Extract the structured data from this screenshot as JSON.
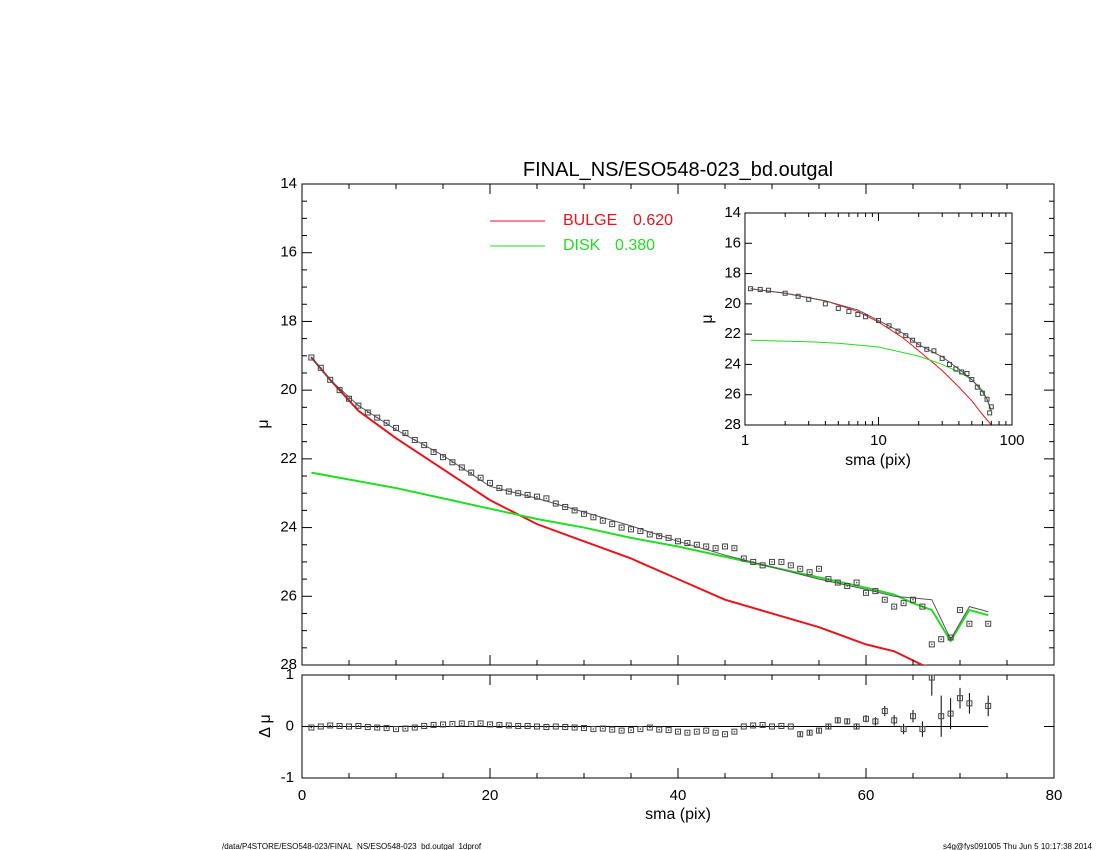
{
  "title": "FINAL_NS/ESO548-023_bd.outgal",
  "footer_left": "/data/P4STORE/ESO548-023/FINAL_NS/ESO548-023_bd.outgal_1dprof",
  "footer_right": "s4g@fys091005  Thu Jun  5 10:17:38 2014",
  "colors": {
    "bulge": "#e8141c",
    "disk": "#22dd22",
    "total": "#555555",
    "points": "#444444"
  },
  "chart_data": [
    {
      "type": "line",
      "panel": "main",
      "title": "FINAL_NS/ESO548-023_bd.outgal",
      "xlabel": "sma (pix)",
      "ylabel": "μ",
      "xlim": [
        0,
        80
      ],
      "ylim": [
        28,
        14
      ],
      "x_ticks": [
        0,
        20,
        40,
        60,
        80
      ],
      "y_ticks": [
        14,
        16,
        18,
        20,
        22,
        24,
        26,
        28
      ],
      "legend": [
        {
          "name": "BULGE",
          "value": "0.620",
          "color": "#e8141c"
        },
        {
          "name": "DISK",
          "value": "0.380",
          "color": "#22dd22"
        }
      ],
      "legend_position": "top-center",
      "series": [
        {
          "name": "BULGE",
          "x": [
            1,
            3,
            6,
            10,
            15,
            20,
            25,
            30,
            35,
            40,
            45,
            50,
            55,
            60,
            63,
            66,
            70
          ],
          "y": [
            19.05,
            19.7,
            20.6,
            21.4,
            22.3,
            23.2,
            23.9,
            24.4,
            24.9,
            25.5,
            26.1,
            26.5,
            26.9,
            27.4,
            27.6,
            28.0,
            28.2
          ]
        },
        {
          "name": "DISK",
          "x": [
            1,
            5,
            10,
            15,
            20,
            25,
            30,
            35,
            40,
            45,
            50,
            55,
            60,
            63,
            65,
            67,
            69,
            71,
            73
          ],
          "y": [
            22.4,
            22.6,
            22.85,
            23.15,
            23.45,
            23.75,
            24.0,
            24.3,
            24.55,
            24.85,
            25.15,
            25.45,
            25.75,
            25.95,
            26.2,
            26.4,
            27.3,
            26.4,
            26.55
          ]
        },
        {
          "name": "total",
          "x": [
            1,
            3,
            6,
            10,
            15,
            20,
            25,
            30,
            35,
            40,
            45,
            50,
            55,
            60,
            63,
            65,
            67,
            69,
            71,
            73
          ],
          "y": [
            19.05,
            19.7,
            20.45,
            21.15,
            21.9,
            22.8,
            23.15,
            23.55,
            23.95,
            24.4,
            24.8,
            25.15,
            25.5,
            25.8,
            26.0,
            26.05,
            26.1,
            27.25,
            26.3,
            26.45
          ]
        },
        {
          "name": "points",
          "style": "markers",
          "x": [
            1,
            2,
            3,
            4,
            5,
            6,
            7,
            8,
            9,
            10,
            11,
            12,
            13,
            14,
            15,
            16,
            17,
            18,
            19,
            20,
            21,
            22,
            23,
            24,
            25,
            26,
            27,
            28,
            29,
            30,
            31,
            32,
            33,
            34,
            35,
            36,
            37,
            38,
            39,
            40,
            41,
            42,
            43,
            44,
            45,
            46,
            47,
            48,
            49,
            50,
            51,
            52,
            53,
            54,
            55,
            56,
            57,
            58,
            59,
            60,
            61,
            62,
            63,
            64,
            65,
            66,
            67,
            68,
            69,
            70,
            71,
            73
          ],
          "y": [
            19.05,
            19.35,
            19.7,
            20.0,
            20.25,
            20.45,
            20.65,
            20.8,
            20.95,
            21.1,
            21.25,
            21.45,
            21.6,
            21.8,
            21.95,
            22.1,
            22.25,
            22.4,
            22.55,
            22.7,
            22.85,
            22.95,
            23.0,
            23.05,
            23.1,
            23.15,
            23.3,
            23.4,
            23.5,
            23.6,
            23.7,
            23.8,
            23.9,
            24.0,
            24.05,
            24.1,
            24.2,
            24.25,
            24.3,
            24.4,
            24.45,
            24.5,
            24.55,
            24.6,
            24.55,
            24.6,
            24.9,
            25.0,
            25.1,
            25.0,
            25.0,
            25.1,
            25.2,
            25.3,
            25.2,
            25.5,
            25.6,
            25.7,
            25.6,
            25.9,
            25.85,
            26.1,
            26.3,
            26.2,
            26.1,
            26.3,
            27.4,
            27.25,
            27.2,
            26.4,
            26.8,
            26.8
          ]
        }
      ]
    },
    {
      "type": "scatter",
      "panel": "residual",
      "xlabel": "sma (pix)",
      "ylabel": "Δ μ",
      "xlim": [
        0,
        80
      ],
      "ylim": [
        -1.0,
        1.0
      ],
      "x_ticks": [
        0,
        20,
        40,
        60,
        80
      ],
      "y_ticks": [
        1,
        0,
        -1
      ],
      "x": [
        1,
        2,
        3,
        4,
        5,
        6,
        7,
        8,
        9,
        10,
        11,
        12,
        13,
        14,
        15,
        16,
        17,
        18,
        19,
        20,
        21,
        22,
        23,
        24,
        25,
        26,
        27,
        28,
        29,
        30,
        31,
        32,
        33,
        34,
        35,
        36,
        37,
        38,
        39,
        40,
        41,
        42,
        43,
        44,
        45,
        46,
        47,
        48,
        49,
        50,
        51,
        52,
        53,
        54,
        55,
        56,
        57,
        58,
        59,
        60,
        61,
        62,
        63,
        64,
        65,
        66,
        67,
        68,
        69,
        70,
        71,
        73
      ],
      "y": [
        -0.02,
        0.0,
        0.02,
        0.01,
        0.0,
        0.01,
        -0.01,
        -0.02,
        -0.03,
        -0.05,
        -0.04,
        -0.02,
        0.01,
        0.03,
        0.04,
        0.05,
        0.06,
        0.05,
        0.06,
        0.04,
        0.03,
        0.02,
        0.01,
        0.01,
        0.0,
        -0.01,
        0.0,
        -0.01,
        -0.02,
        -0.03,
        -0.05,
        -0.04,
        -0.06,
        -0.08,
        -0.07,
        -0.05,
        -0.02,
        -0.06,
        -0.07,
        -0.1,
        -0.12,
        -0.1,
        -0.08,
        -0.12,
        -0.15,
        -0.1,
        0.0,
        0.02,
        0.03,
        0.0,
        0.01,
        0.0,
        -0.15,
        -0.12,
        -0.08,
        0.0,
        0.12,
        0.1,
        0.0,
        0.15,
        0.1,
        0.3,
        0.12,
        -0.05,
        0.2,
        -0.05,
        0.95,
        0.2,
        0.25,
        0.55,
        0.45,
        0.4
      ],
      "err": [
        0.01,
        0.01,
        0.01,
        0.01,
        0.01,
        0.01,
        0.01,
        0.01,
        0.01,
        0.01,
        0.01,
        0.01,
        0.01,
        0.01,
        0.01,
        0.01,
        0.01,
        0.01,
        0.01,
        0.01,
        0.01,
        0.01,
        0.01,
        0.01,
        0.01,
        0.01,
        0.01,
        0.01,
        0.01,
        0.01,
        0.01,
        0.01,
        0.01,
        0.01,
        0.01,
        0.01,
        0.02,
        0.02,
        0.02,
        0.02,
        0.02,
        0.02,
        0.02,
        0.02,
        0.02,
        0.02,
        0.03,
        0.03,
        0.03,
        0.03,
        0.03,
        0.03,
        0.04,
        0.04,
        0.04,
        0.05,
        0.06,
        0.06,
        0.06,
        0.07,
        0.08,
        0.1,
        0.1,
        0.1,
        0.12,
        0.15,
        0.35,
        0.4,
        0.3,
        0.2,
        0.2,
        0.2
      ]
    },
    {
      "type": "line",
      "panel": "inset",
      "xlabel": "sma (pix)",
      "ylabel": "μ",
      "xscale": "log",
      "xlim": [
        1,
        100
      ],
      "ylim": [
        28,
        14
      ],
      "x_ticks": [
        1,
        10,
        100
      ],
      "y_ticks": [
        14,
        16,
        18,
        20,
        22,
        24,
        26,
        28
      ],
      "series": [
        {
          "name": "BULGE",
          "x": [
            1.1,
            2,
            4,
            7,
            10,
            15,
            20,
            30,
            40,
            50,
            60,
            70
          ],
          "y": [
            19.0,
            19.3,
            19.8,
            20.5,
            21.2,
            22.2,
            23.1,
            24.4,
            25.5,
            26.4,
            27.3,
            28.0
          ]
        },
        {
          "name": "DISK",
          "x": [
            1.1,
            3,
            5,
            10,
            20,
            30,
            40,
            50,
            60,
            65,
            70
          ],
          "y": [
            22.4,
            22.5,
            22.6,
            22.85,
            23.45,
            24.0,
            24.5,
            25.0,
            25.7,
            26.3,
            27.0
          ]
        },
        {
          "name": "total",
          "x": [
            1.1,
            2,
            4,
            7,
            10,
            15,
            20,
            30,
            40,
            50,
            60,
            65,
            70
          ],
          "y": [
            19.0,
            19.3,
            19.8,
            20.4,
            21.1,
            21.9,
            22.7,
            23.5,
            24.3,
            25.0,
            25.8,
            26.3,
            27.1
          ]
        },
        {
          "name": "points",
          "style": "markers",
          "x": [
            1.1,
            1.3,
            1.5,
            2,
            2.5,
            3,
            4,
            5,
            6,
            7,
            8,
            10,
            12,
            14,
            16,
            18,
            20,
            23,
            26,
            30,
            34,
            38,
            42,
            46,
            50,
            55,
            60,
            65,
            68,
            70
          ],
          "y": [
            19.0,
            19.05,
            19.1,
            19.3,
            19.5,
            19.7,
            20.0,
            20.3,
            20.5,
            20.7,
            20.85,
            21.1,
            21.45,
            21.8,
            22.1,
            22.4,
            22.7,
            23.0,
            23.1,
            23.6,
            24.0,
            24.3,
            24.5,
            24.6,
            25.0,
            25.5,
            25.9,
            26.3,
            27.2,
            26.8
          ]
        }
      ]
    }
  ]
}
